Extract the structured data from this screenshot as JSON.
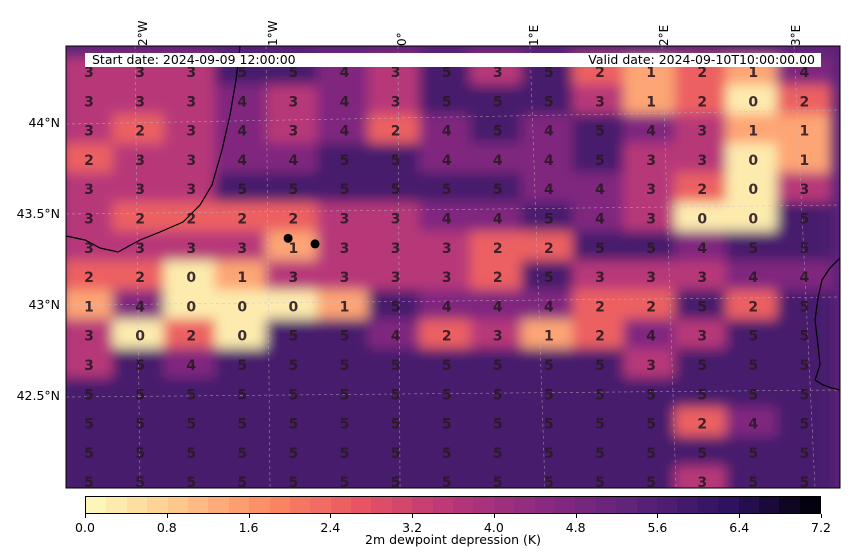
{
  "figure": {
    "start_date_text": "Start date: 2024-09-09  12:00:00",
    "valid_date_text": "Valid  date: 2024-09-10T10:00:00.00",
    "colorbar_label": "2m dewpoint depression (K)",
    "colorbar_ticks": [
      "0.0",
      "0.8",
      "1.6",
      "2.4",
      "3.2",
      "4.0",
      "4.8",
      "5.6",
      "6.4",
      "7.2"
    ],
    "colormap": "magma_r",
    "colors": {
      "low": "#fdf5b4",
      "mid": "#d3436e",
      "high": "#2a1050",
      "background": "#5b2378",
      "marker": "#000000"
    },
    "longitude_labels": [
      "2°W",
      "1°W",
      "0°",
      "1°E",
      "2°E",
      "3°E"
    ],
    "latitude_labels": [
      "44°N",
      "43.5°N",
      "43°N",
      "42.5°N"
    ]
  },
  "chart_data": {
    "type": "heatmap",
    "title": "",
    "colorbar": {
      "label": "2m dewpoint depression (K)",
      "min": 0.0,
      "max": 7.2,
      "step": 0.2
    },
    "grid_values": [
      [
        3,
        3,
        3,
        5,
        5,
        4,
        3,
        5,
        3,
        5,
        2,
        1,
        2,
        1,
        4
      ],
      [
        3,
        3,
        3,
        4,
        3,
        4,
        3,
        5,
        5,
        5,
        3,
        1,
        2,
        0,
        2
      ],
      [
        3,
        2,
        3,
        4,
        3,
        4,
        2,
        4,
        5,
        4,
        5,
        4,
        3,
        1,
        1
      ],
      [
        2,
        3,
        3,
        4,
        4,
        5,
        5,
        4,
        4,
        4,
        5,
        3,
        3,
        0,
        1
      ],
      [
        3,
        3,
        3,
        5,
        5,
        5,
        5,
        5,
        5,
        4,
        4,
        3,
        2,
        0,
        3
      ],
      [
        3,
        2,
        2,
        2,
        2,
        3,
        3,
        4,
        4,
        5,
        4,
        3,
        0,
        0,
        5
      ],
      [
        3,
        3,
        3,
        3,
        1,
        3,
        3,
        3,
        2,
        2,
        5,
        5,
        4,
        5,
        5
      ],
      [
        2,
        2,
        0,
        1,
        3,
        3,
        3,
        3,
        2,
        5,
        3,
        3,
        3,
        4,
        4
      ],
      [
        1,
        4,
        0,
        0,
        0,
        1,
        5,
        4,
        4,
        4,
        2,
        2,
        5,
        2,
        5
      ],
      [
        3,
        0,
        2,
        0,
        5,
        5,
        4,
        2,
        3,
        1,
        2,
        4,
        3,
        5,
        5
      ],
      [
        3,
        5,
        4,
        5,
        5,
        5,
        5,
        5,
        5,
        5,
        5,
        3,
        5,
        5,
        5
      ],
      [
        5,
        5,
        5,
        5,
        5,
        5,
        5,
        5,
        5,
        5,
        5,
        5,
        5,
        5,
        5
      ],
      [
        5,
        5,
        5,
        5,
        5,
        5,
        5,
        5,
        5,
        5,
        5,
        5,
        2,
        4,
        5
      ],
      [
        5,
        5,
        5,
        5,
        5,
        5,
        5,
        5,
        5,
        5,
        5,
        5,
        5,
        5,
        5
      ],
      [
        5,
        5,
        5,
        5,
        5,
        5,
        5,
        5,
        5,
        5,
        5,
        5,
        3,
        5,
        5
      ]
    ],
    "markers": [
      {
        "lon": -0.85,
        "lat": 43.39
      },
      {
        "lon": -0.65,
        "lat": 43.36
      }
    ],
    "xlim_lon": [
      -2.5,
      3.25
    ],
    "ylim_lat": [
      42.04,
      44.43
    ]
  }
}
